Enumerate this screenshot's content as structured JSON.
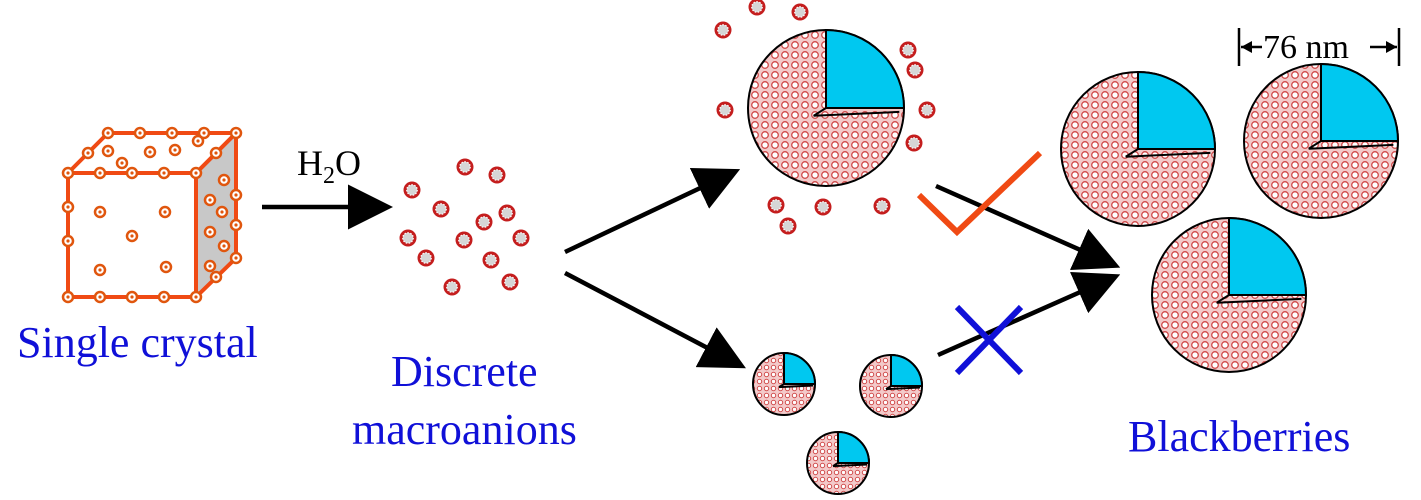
{
  "labels": {
    "single_crystal": "Single crystal",
    "reagent_main": "H",
    "reagent_sub": "2",
    "reagent_tail": "O",
    "discrete_line1": "Discrete",
    "discrete_line2": "macroanions",
    "blackberries": "Blackberries",
    "scale_bar": "76 nm"
  },
  "colors": {
    "crystal_edge": "#f04a14",
    "label_blue": "#1010d8",
    "cluster_red": "#cc2222",
    "sphere_fill": "#f2c6c6",
    "wedge_cyan": "#00c8f0",
    "check_red": "#f04a14",
    "cross_blue": "#1010d8"
  },
  "icons": {
    "crystal": "cube-crystal-icon",
    "accepted_path": "checkmark-icon",
    "rejected_path": "cross-icon"
  }
}
